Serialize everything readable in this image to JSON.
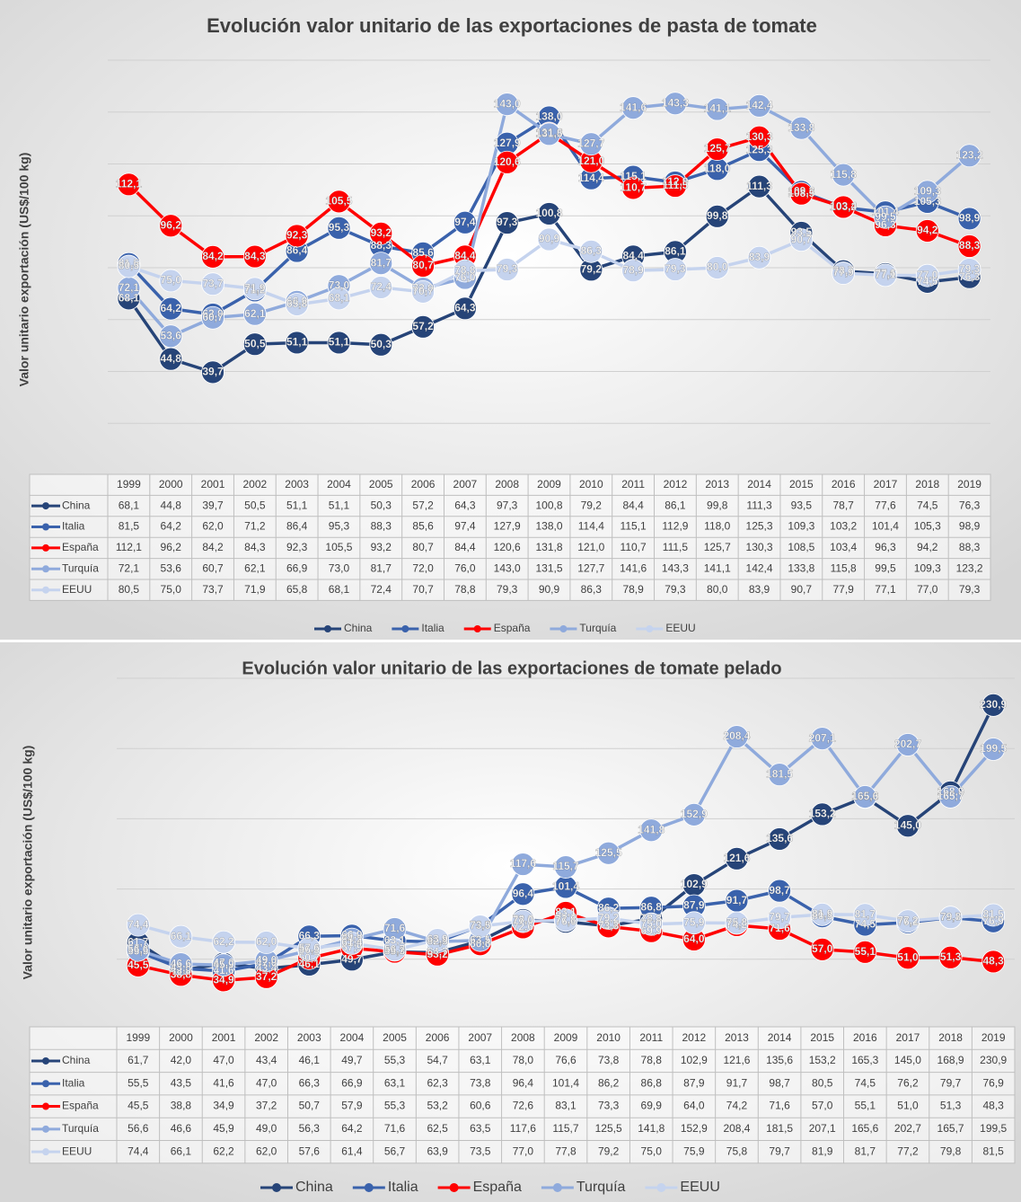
{
  "chart_data": [
    {
      "type": "line",
      "title": "Evolución valor unitario de las exportaciones de pasta de tomate",
      "y_label": "Valor unitario exportación (US$/100 kg)",
      "categories": [
        "1999",
        "2000",
        "2001",
        "2002",
        "2003",
        "2004",
        "2005",
        "2006",
        "2007",
        "2008",
        "2009",
        "2010",
        "2011",
        "2012",
        "2013",
        "2014",
        "2015",
        "2016",
        "2017",
        "2018",
        "2019"
      ],
      "ylim": [
        0,
        160
      ],
      "yticks": [
        20,
        40,
        60,
        80,
        100,
        120,
        140,
        160
      ],
      "grid": true,
      "series": [
        {
          "name": "China",
          "color": "#264478",
          "values": [
            68.1,
            44.8,
            39.7,
            50.5,
            51.1,
            51.1,
            50.3,
            57.2,
            64.3,
            97.3,
            100.8,
            79.2,
            84.4,
            86.1,
            99.8,
            111.3,
            93.5,
            78.7,
            77.6,
            74.5,
            76.3
          ],
          "value_labels": [
            "68,1",
            "44,8",
            "39,7",
            "50,5",
            "51,1",
            "51,1",
            "50,3",
            "57,2",
            "64,3",
            "97,3",
            "100,8",
            "79,2",
            "84,4",
            "86,1",
            "99,8",
            "111,3",
            "93,5",
            "78,7",
            "77,6",
            "74,5",
            "76,3"
          ]
        },
        {
          "name": "Italia",
          "color": "#3a62ac",
          "values": [
            81.5,
            64.2,
            62,
            71.2,
            86.4,
            95.3,
            88.3,
            85.6,
            97.4,
            127.9,
            138,
            114.4,
            115.1,
            112.9,
            118,
            125.3,
            109.3,
            103.2,
            101.4,
            105.3,
            98.9
          ],
          "value_labels": [
            "81,5",
            "64,2",
            "62,0",
            "71,2",
            "86,4",
            "95,3",
            "88,3",
            "85,6",
            "97,4",
            "127,9",
            "138,0",
            "114,4",
            "115,1",
            "112,9",
            "118,0",
            "125,3",
            "109,3",
            "103,2",
            "101,4",
            "105,3",
            "98,9"
          ]
        },
        {
          "name": "España",
          "color": "#ff0000",
          "values": [
            112.1,
            96.2,
            84.2,
            84.3,
            92.3,
            105.5,
            93.2,
            80.7,
            84.4,
            120.6,
            131.8,
            121,
            110.7,
            111.5,
            125.7,
            130.3,
            108.5,
            103.4,
            96.3,
            94.2,
            88.3
          ],
          "value_labels": [
            "112,1",
            "96,2",
            "84,2",
            "84,3",
            "92,3",
            "105,5",
            "93,2",
            "80,7",
            "84,4",
            "120,6",
            "131,8",
            "121,0",
            "110,7",
            "111,5",
            "125,7",
            "130,3",
            "108,5",
            "103,4",
            "96,3",
            "94,2",
            "88,3"
          ]
        },
        {
          "name": "Turquía",
          "color": "#8faadc",
          "values": [
            72.1,
            53.6,
            60.7,
            62.1,
            66.9,
            73,
            81.7,
            72,
            76,
            143,
            131.5,
            127.7,
            141.6,
            143.3,
            141.1,
            142.4,
            133.8,
            115.8,
            99.5,
            109.3,
            123.2
          ],
          "value_labels": [
            "72,1",
            "53,6",
            "60,7",
            "62,1",
            "66,9",
            "73,0",
            "81,7",
            "72,0",
            "76,0",
            "143,0",
            "131,5",
            "127,7",
            "141,6",
            "143,3",
            "141,1",
            "142,4",
            "133,8",
            "115,8",
            "99,5",
            "109,3",
            "123,2"
          ]
        },
        {
          "name": "EEUU",
          "color": "#c5d3ee",
          "values": [
            80.5,
            75,
            73.7,
            71.9,
            65.8,
            68.1,
            72.4,
            70.7,
            78.8,
            79.3,
            90.9,
            86.3,
            78.9,
            79.3,
            80,
            83.9,
            90.7,
            77.9,
            77.1,
            77,
            79.3
          ],
          "value_labels": [
            "80,5",
            "75,0",
            "73,7",
            "71,9",
            "65,8",
            "68,1",
            "72,4",
            "70,7",
            "78,8",
            "79,3",
            "90,9",
            "86,3",
            "78,9",
            "79,3",
            "80,0",
            "83,9",
            "90,7",
            "77,9",
            "77,1",
            "77,0",
            "79,3"
          ]
        }
      ]
    },
    {
      "type": "line",
      "title": "Evolución valor unitario de las exportaciones de tomate pelado",
      "y_label": "Valor unitario exportación (US$/100 kg)",
      "categories": [
        "1999",
        "2000",
        "2001",
        "2002",
        "2003",
        "2004",
        "2005",
        "2006",
        "2007",
        "2008",
        "2009",
        "2010",
        "2011",
        "2012",
        "2013",
        "2014",
        "2015",
        "2016",
        "2017",
        "2018",
        "2019"
      ],
      "ylim": [
        0,
        250
      ],
      "yticks": [
        50,
        100,
        150,
        200,
        250
      ],
      "grid": true,
      "series": [
        {
          "name": "China",
          "color": "#264478",
          "values": [
            61.7,
            42,
            47,
            43.4,
            46.1,
            49.7,
            55.3,
            54.7,
            63.1,
            78,
            76.6,
            73.8,
            78.8,
            102.9,
            121.6,
            135.6,
            153.2,
            165.3,
            145,
            168.9,
            230.9
          ],
          "value_labels": [
            "61,7",
            "42,0",
            "47,0",
            "43,4",
            "46,1",
            "49,7",
            "55,3",
            "54,7",
            "63,1",
            "78,0",
            "76,6",
            "73,8",
            "78,8",
            "102,9",
            "121,6",
            "135,6",
            "153,2",
            "165,3",
            "145,0",
            "168,9",
            "230,9"
          ]
        },
        {
          "name": "Italia",
          "color": "#3a62ac",
          "values": [
            55.5,
            43.5,
            41.6,
            47,
            66.3,
            66.9,
            63.1,
            62.3,
            73.8,
            96.4,
            101.4,
            86.2,
            86.8,
            87.9,
            91.7,
            98.7,
            80.5,
            74.5,
            76.2,
            79.7,
            76.9
          ],
          "value_labels": [
            "55,5",
            "43,5",
            "41,6",
            "47,0",
            "66,3",
            "66,9",
            "63,1",
            "62,3",
            "73,8",
            "96,4",
            "101,4",
            "86,2",
            "86,8",
            "87,9",
            "91,7",
            "98,7",
            "80,5",
            "74,5",
            "76,2",
            "79,7",
            "76,9"
          ]
        },
        {
          "name": "España",
          "color": "#ff0000",
          "values": [
            45.5,
            38.8,
            34.9,
            37.2,
            50.7,
            57.9,
            55.3,
            53.2,
            60.6,
            72.6,
            83.1,
            73.3,
            69.9,
            64,
            74.2,
            71.6,
            57,
            55.1,
            51,
            51.3,
            48.3
          ],
          "value_labels": [
            "45,5",
            "38,8",
            "34,9",
            "37,2",
            "50,7",
            "57,9",
            "55,3",
            "53,2",
            "60,6",
            "72,6",
            "83,1",
            "73,3",
            "69,9",
            "64,0",
            "74,2",
            "71,6",
            "57,0",
            "55,1",
            "51,0",
            "51,3",
            "48,3"
          ]
        },
        {
          "name": "Turquía",
          "color": "#8faadc",
          "values": [
            56.6,
            46.6,
            45.9,
            49,
            56.3,
            64.2,
            71.6,
            62.5,
            63.5,
            117.6,
            115.7,
            125.5,
            141.8,
            152.9,
            208.4,
            181.5,
            207.1,
            165.6,
            202.7,
            165.7,
            199.5
          ],
          "value_labels": [
            "56,6",
            "46,6",
            "45,9",
            "49,0",
            "56,3",
            "64,2",
            "71,6",
            "62,5",
            "63,5",
            "117,6",
            "115,7",
            "125,5",
            "141,8",
            "152,9",
            "208,4",
            "181,5",
            "207,1",
            "165,6",
            "202,7",
            "165,7",
            "199,5"
          ]
        },
        {
          "name": "EEUU",
          "color": "#c5d3ee",
          "values": [
            74.4,
            66.1,
            62.2,
            62,
            57.6,
            61.4,
            56.7,
            63.9,
            73.5,
            77,
            77.8,
            79.2,
            75,
            75.9,
            75.8,
            79.7,
            81.9,
            81.7,
            77.2,
            79.8,
            81.5
          ],
          "value_labels": [
            "74,4",
            "66,1",
            "62,2",
            "62,0",
            "57,6",
            "61,4",
            "56,7",
            "63,9",
            "73,5",
            "77,0",
            "77,8",
            "79,2",
            "75,0",
            "75,9",
            "75,8",
            "79,7",
            "81,9",
            "81,7",
            "77,2",
            "79,8",
            "81,5"
          ]
        }
      ]
    }
  ]
}
